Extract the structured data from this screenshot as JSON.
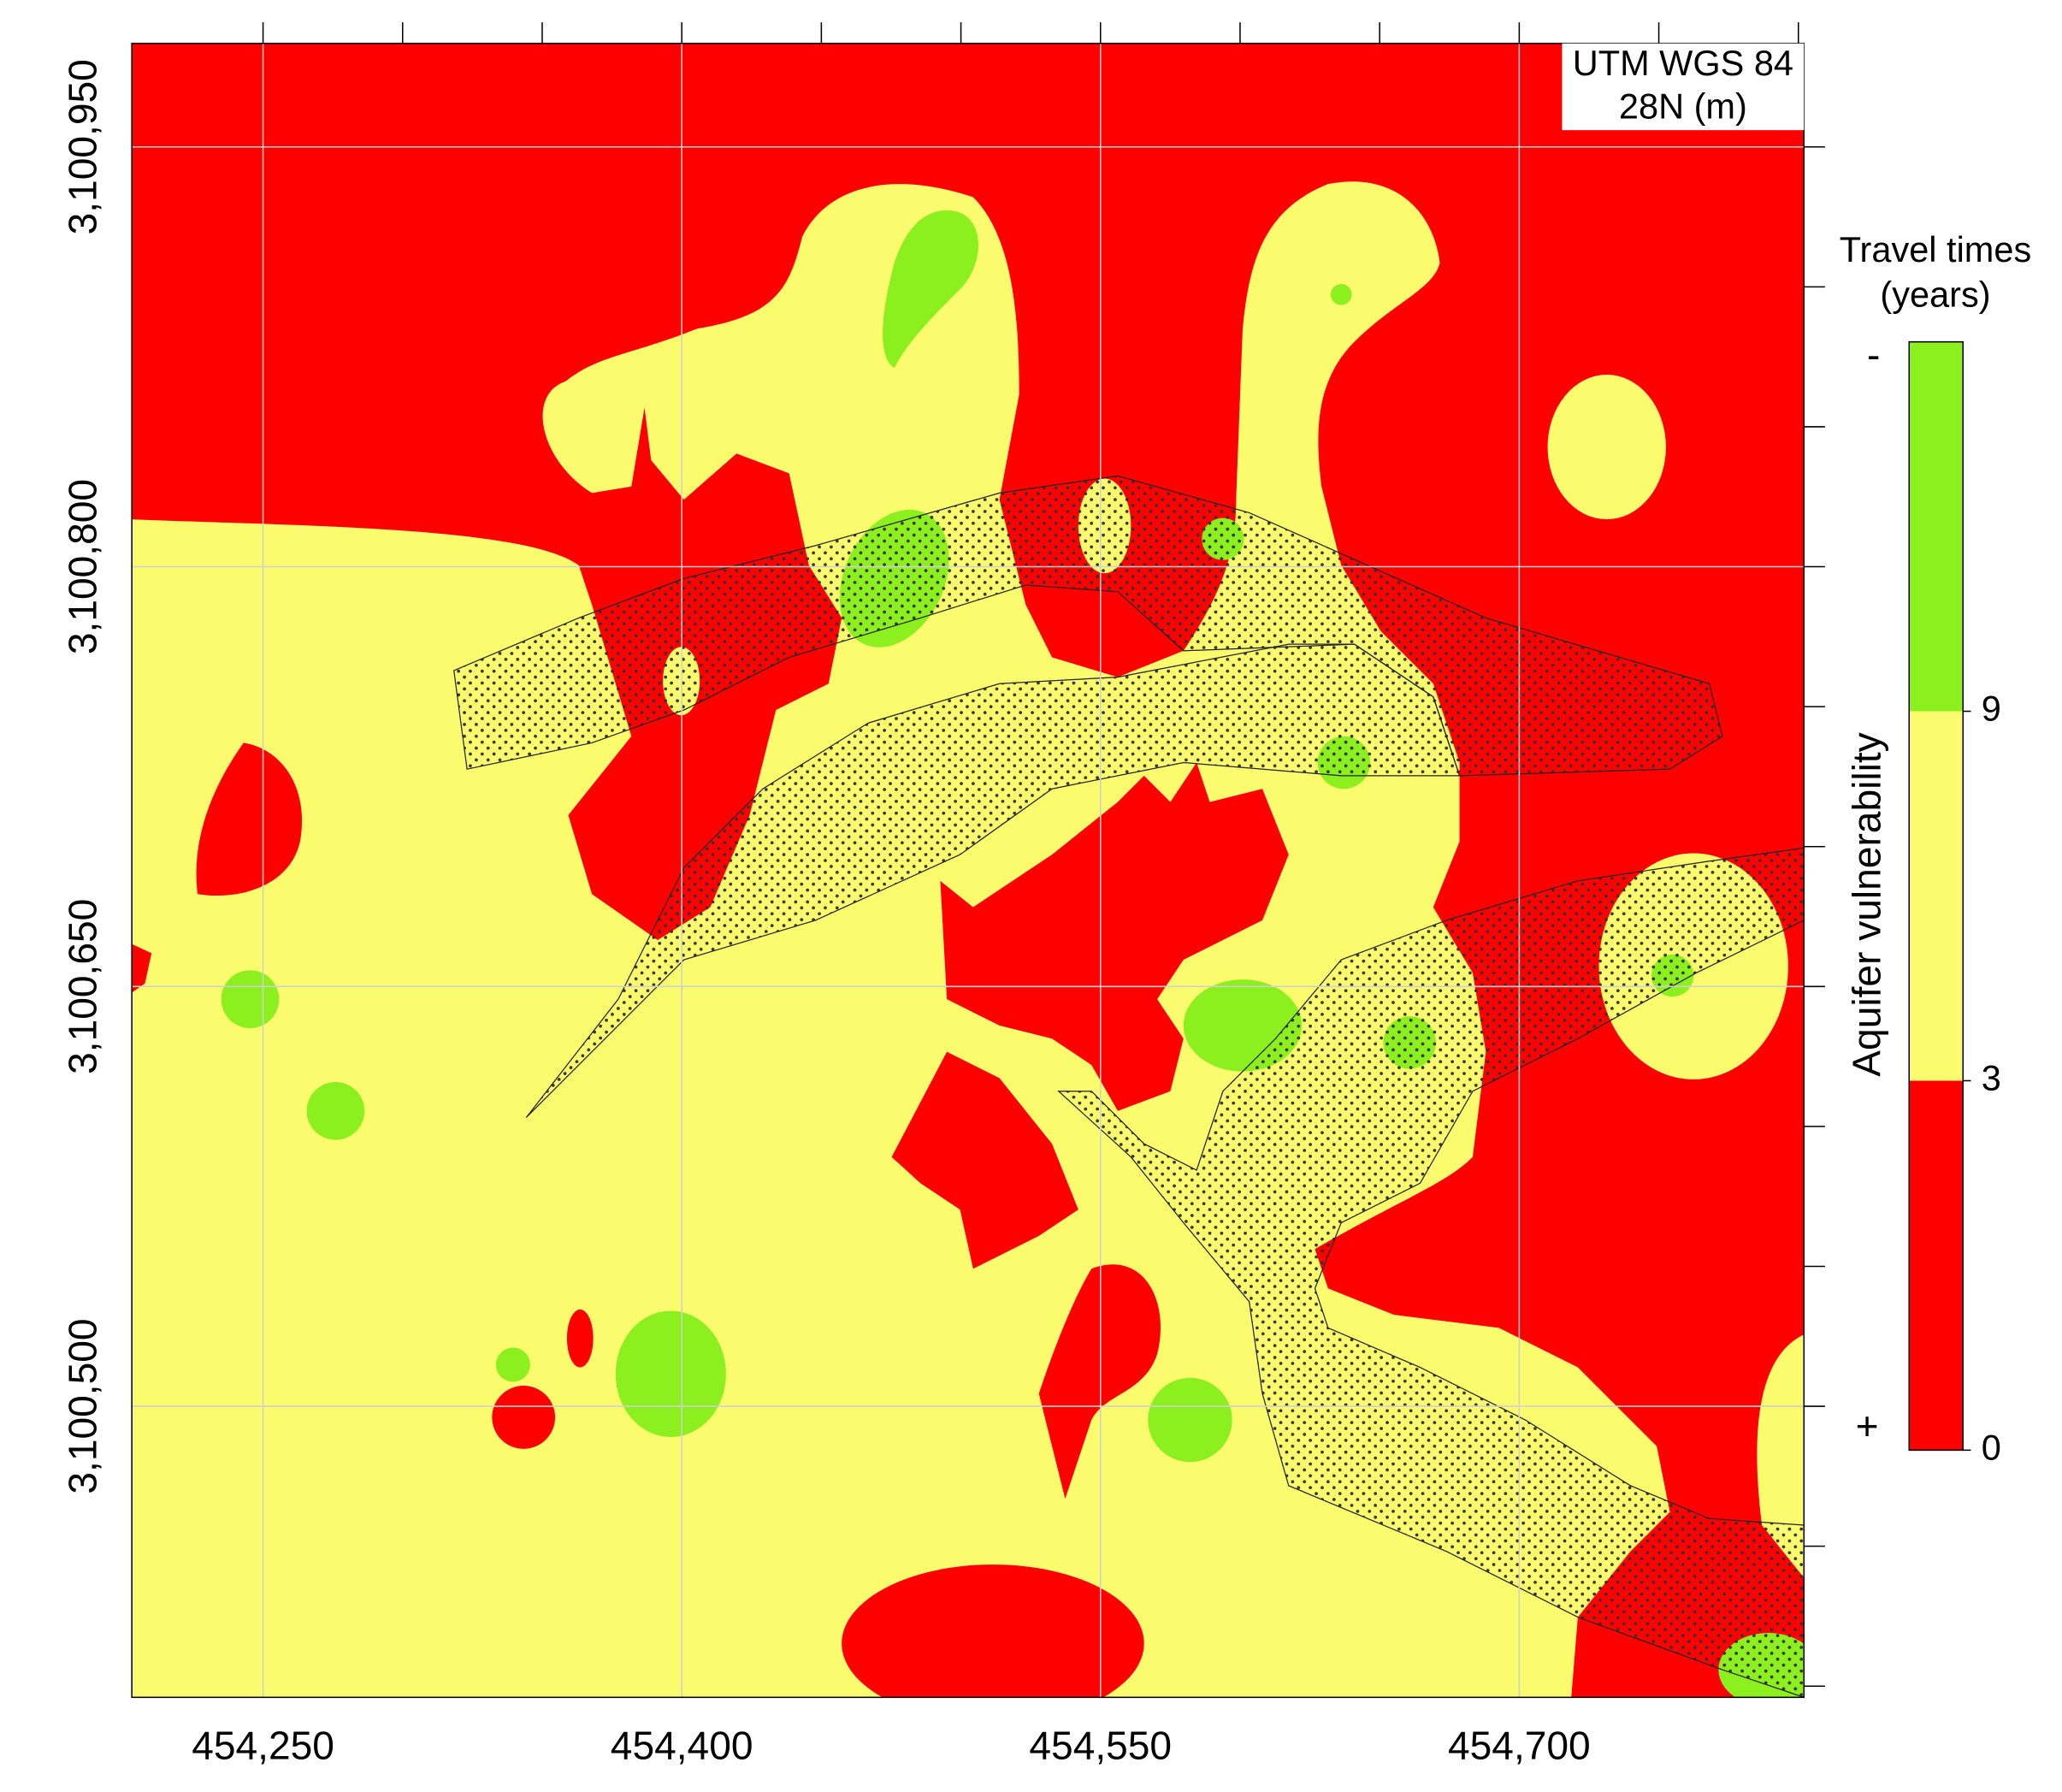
{
  "map": {
    "corner_label": [
      "UTM WGS 84",
      "28N (m)"
    ],
    "xlim": [
      454203,
      454802
    ],
    "ylim": [
      3100396,
      3100987
    ],
    "xticks": [
      {
        "value": 454250,
        "label": "454,250"
      },
      {
        "value": 454400,
        "label": "454,400"
      },
      {
        "value": 454550,
        "label": "454,550"
      },
      {
        "value": 454700,
        "label": "454,700"
      }
    ],
    "yticks": [
      {
        "value": 3100950,
        "label": "3,100,950"
      },
      {
        "value": 3100800,
        "label": "3,100,800"
      },
      {
        "value": 3100650,
        "label": "3,100,650"
      },
      {
        "value": 3100500,
        "label": "3,100,500"
      }
    ],
    "grid": true
  },
  "legend": {
    "title": [
      "Travel times",
      "(years)"
    ],
    "axis_label": "Aquifer vulnerability",
    "top_label": "-",
    "bottom_label": "+",
    "classes": [
      {
        "color": "#ff0000"
      },
      {
        "color": "#fbfb6e"
      },
      {
        "color": "#8cf01e"
      }
    ],
    "ticks": [
      0,
      3,
      9
    ]
  }
}
